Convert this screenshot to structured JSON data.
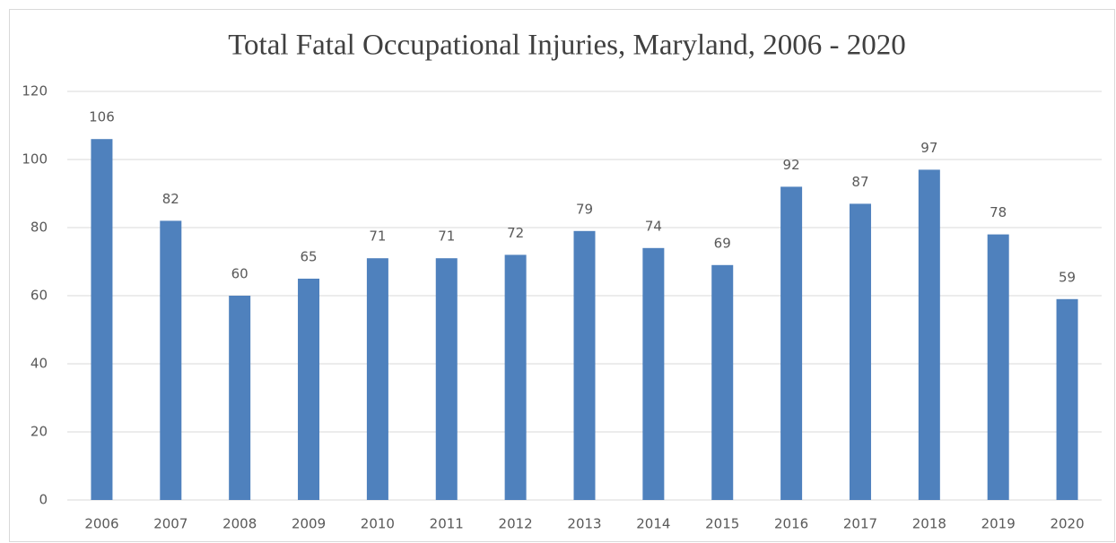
{
  "chart_data": {
    "type": "bar",
    "title": "Total Fatal Occupational Injuries, Maryland,  2006 - 2020",
    "categories": [
      "2006",
      "2007",
      "2008",
      "2009",
      "2010",
      "2011",
      "2012",
      "2013",
      "2014",
      "2015",
      "2016",
      "2017",
      "2018",
      "2019",
      "2020"
    ],
    "values": [
      106,
      82,
      60,
      65,
      71,
      71,
      72,
      79,
      74,
      69,
      92,
      87,
      97,
      78,
      59
    ],
    "color": "#4f81bd",
    "ylim": [
      0,
      120
    ],
    "yticks": [
      0,
      20,
      40,
      60,
      80,
      100,
      120
    ],
    "grid": true,
    "data_labels": true
  }
}
